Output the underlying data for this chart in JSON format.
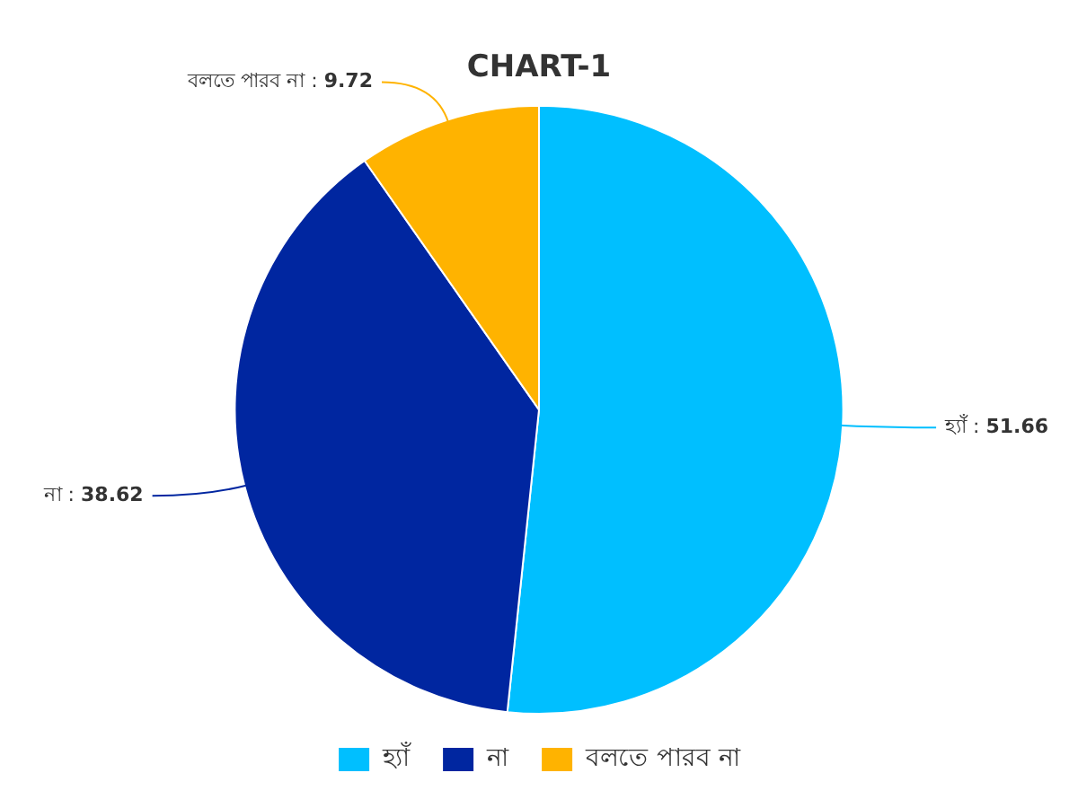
{
  "chart_data": {
    "type": "pie",
    "title": "CHART-1",
    "categories": [
      "হ্যাঁ",
      "না",
      "বলতে পারব না"
    ],
    "values": [
      51.66,
      38.62,
      9.72
    ],
    "colors": [
      "#00bfff",
      "#0026a0",
      "#ffb300"
    ],
    "value_labels": [
      "হ্যাঁ : 51.66",
      "না : 38.62",
      "বলতে পারব না : 9.72"
    ],
    "legend": "bottom"
  }
}
